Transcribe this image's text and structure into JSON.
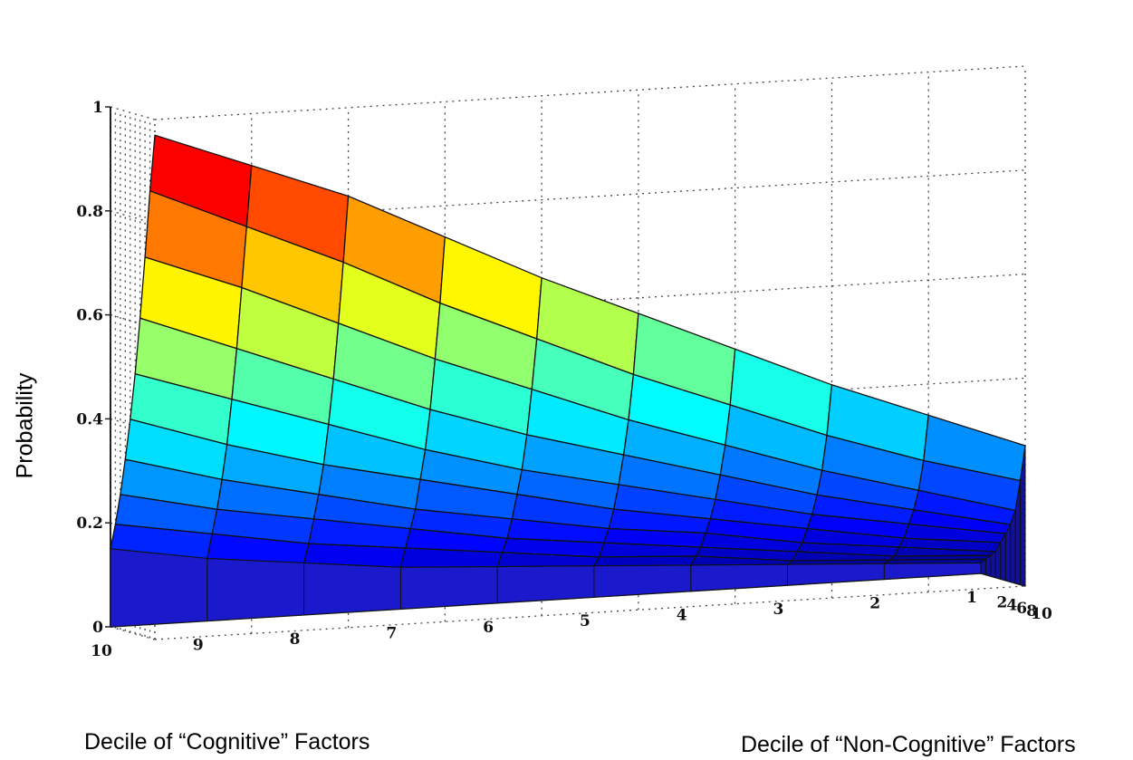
{
  "chart_data": {
    "type": "surface",
    "title": "",
    "zlabel": "Probability",
    "xlabel": "Decile of “Cognitive” Factors",
    "ylabel": "Decile of “Non-Cognitive” Factors",
    "zlim": [
      0,
      1
    ],
    "z_ticks": [
      "0",
      "0.2",
      "0.4",
      "0.6",
      "0.8",
      "1"
    ],
    "x_ticks": [
      "10",
      "9",
      "8",
      "7",
      "6",
      "5",
      "4",
      "3",
      "2",
      "1"
    ],
    "y_ticks": [
      "2",
      "4",
      "6",
      "8",
      "10"
    ],
    "grid": true,
    "colormap": "jet",
    "cognitive_deciles": [
      1,
      2,
      3,
      4,
      5,
      6,
      7,
      8,
      9,
      10
    ],
    "noncognitive_deciles": [
      1,
      2,
      3,
      4,
      5,
      6,
      7,
      8,
      9,
      10
    ],
    "z_rows_by_cognitive_decile": [
      [
        0.02,
        0.03,
        0.04,
        0.05,
        0.07,
        0.09,
        0.11,
        0.14,
        0.2,
        0.27
      ],
      [
        0.03,
        0.04,
        0.05,
        0.07,
        0.09,
        0.12,
        0.15,
        0.19,
        0.25,
        0.34
      ],
      [
        0.04,
        0.05,
        0.07,
        0.09,
        0.12,
        0.15,
        0.19,
        0.24,
        0.31,
        0.41
      ],
      [
        0.05,
        0.07,
        0.09,
        0.12,
        0.15,
        0.19,
        0.24,
        0.3,
        0.38,
        0.49
      ],
      [
        0.06,
        0.08,
        0.11,
        0.14,
        0.18,
        0.23,
        0.29,
        0.36,
        0.45,
        0.57
      ],
      [
        0.07,
        0.1,
        0.13,
        0.17,
        0.22,
        0.27,
        0.34,
        0.43,
        0.53,
        0.65
      ],
      [
        0.08,
        0.12,
        0.16,
        0.2,
        0.26,
        0.32,
        0.4,
        0.5,
        0.61,
        0.74
      ],
      [
        0.1,
        0.14,
        0.19,
        0.24,
        0.3,
        0.38,
        0.47,
        0.58,
        0.7,
        0.83
      ],
      [
        0.12,
        0.17,
        0.22,
        0.28,
        0.35,
        0.44,
        0.54,
        0.66,
        0.78,
        0.9
      ],
      [
        0.15,
        0.2,
        0.26,
        0.33,
        0.41,
        0.5,
        0.61,
        0.73,
        0.86,
        0.97
      ]
    ]
  }
}
